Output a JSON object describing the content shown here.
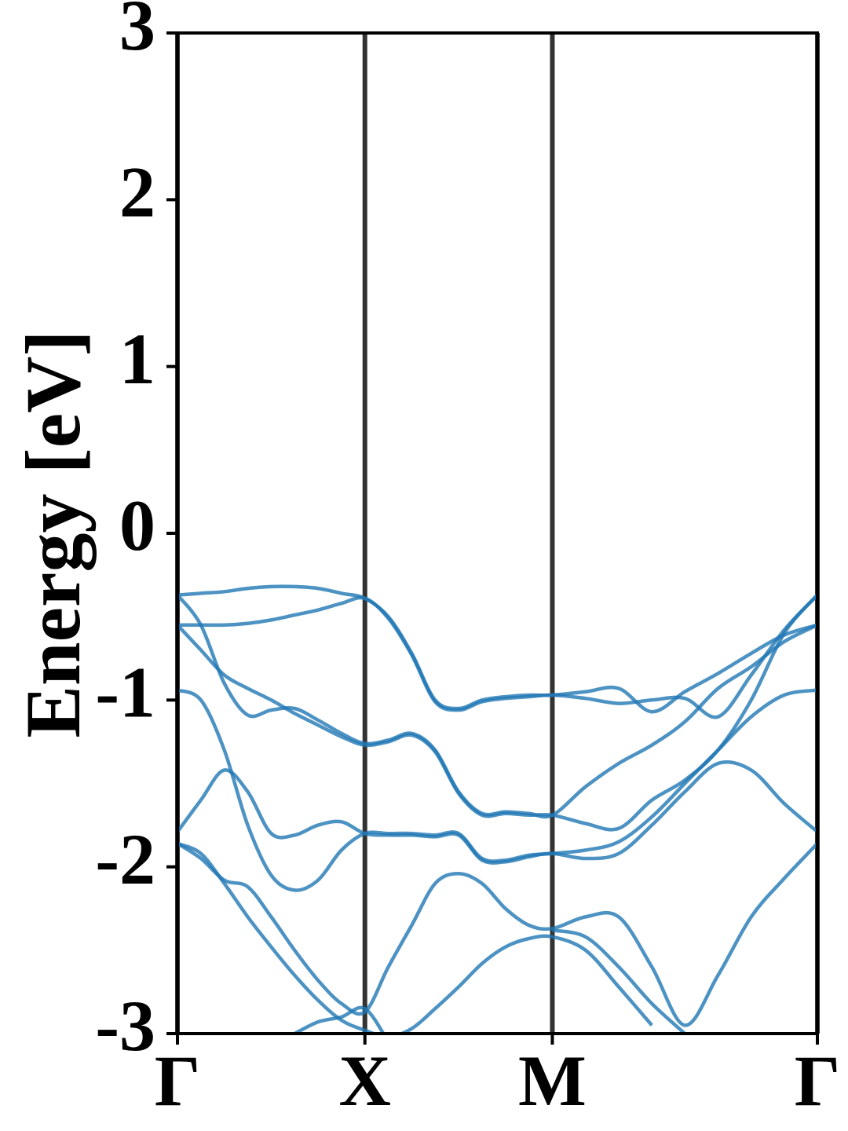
{
  "chart_data": {
    "type": "line",
    "ylabel": "Energy [eV]",
    "x": [
      0,
      0.125,
      0.25,
      0.375,
      0.5,
      0.625,
      0.75,
      0.875,
      1,
      1.125,
      1.25,
      1.375,
      1.5,
      1.625,
      1.75,
      1.875,
      2,
      2.177,
      2.354,
      2.531,
      2.707,
      2.884,
      3.061,
      3.237,
      3.414
    ],
    "xlim": [
      0,
      3.414
    ],
    "xticks": [
      {
        "value": 0,
        "label": "Γ"
      },
      {
        "value": 1,
        "label": "X"
      },
      {
        "value": 2,
        "label": "M"
      },
      {
        "value": 3.414,
        "label": "Γ"
      }
    ],
    "ylim": [
      -3,
      3
    ],
    "yticks": [
      -3,
      -2,
      -1,
      0,
      1,
      2,
      3
    ],
    "xgrid": true,
    "color": "#1f77b4",
    "series": [
      {
        "values": [
          -0.37,
          -0.36,
          -0.35,
          -0.33,
          -0.32,
          -0.32,
          -0.33,
          -0.36,
          -0.39,
          -0.5,
          -0.72,
          -1.0,
          -1.05,
          -1.0,
          -0.98,
          -0.97,
          -0.97,
          -0.95,
          -0.93,
          -1.07,
          -0.95,
          -0.84,
          -0.72,
          -0.61,
          -0.55
        ]
      },
      {
        "values": [
          -0.55,
          -0.55,
          -0.55,
          -0.54,
          -0.52,
          -0.49,
          -0.46,
          -0.42,
          -0.39,
          -0.51,
          -0.73,
          -1.01,
          -1.06,
          -1.01,
          -0.99,
          -0.98,
          -0.97,
          -0.99,
          -1.02,
          -1.0,
          -0.99,
          -1.1,
          -0.85,
          -0.58,
          -0.37
        ]
      },
      {
        "values": [
          -0.37,
          -0.55,
          -0.9,
          -1.09,
          -1.06,
          -1.05,
          -1.12,
          -1.2,
          -1.26,
          -1.24,
          -1.2,
          -1.3,
          -1.55,
          -1.68,
          -1.67,
          -1.68,
          -1.69,
          -1.52,
          -1.38,
          -1.27,
          -1.13,
          -0.93,
          -0.8,
          -0.65,
          -0.55
        ]
      },
      {
        "values": [
          -0.55,
          -0.7,
          -0.85,
          -0.93,
          -1.0,
          -1.08,
          -1.15,
          -1.22,
          -1.27,
          -1.25,
          -1.21,
          -1.31,
          -1.56,
          -1.69,
          -1.68,
          -1.69,
          -1.69,
          -1.74,
          -1.77,
          -1.6,
          -1.48,
          -1.3,
          -1.0,
          -0.6,
          -0.37
        ]
      },
      {
        "values": [
          -0.94,
          -1.0,
          -1.3,
          -1.75,
          -2.05,
          -2.14,
          -2.08,
          -1.9,
          -1.8,
          -1.8,
          -1.8,
          -1.81,
          -1.8,
          -1.95,
          -1.96,
          -1.93,
          -1.92,
          -1.9,
          -1.85,
          -1.7,
          -1.5,
          -1.3,
          -1.1,
          -0.97,
          -0.94
        ]
      },
      {
        "values": [
          -1.79,
          -1.6,
          -1.42,
          -1.55,
          -1.8,
          -1.81,
          -1.75,
          -1.73,
          -1.8,
          -1.81,
          -1.81,
          -1.82,
          -1.81,
          -1.96,
          -1.97,
          -1.94,
          -1.92,
          -1.95,
          -1.92,
          -1.75,
          -1.55,
          -1.38,
          -1.42,
          -1.62,
          -1.79
        ]
      },
      {
        "values": [
          -1.86,
          -1.95,
          -2.08,
          -2.12,
          -2.3,
          -2.5,
          -2.68,
          -2.82,
          -2.87,
          -2.6,
          -2.35,
          -2.1,
          -2.04,
          -2.1,
          -2.25,
          -2.35,
          -2.37,
          -2.3,
          -2.3,
          -2.6,
          -2.95,
          -2.65,
          -2.3,
          -2.07,
          -1.86
        ]
      },
      {
        "values": [
          -1.86,
          -1.92,
          -2.1,
          -2.3,
          -2.48,
          -2.65,
          -2.8,
          -2.92,
          -2.98,
          -3.02,
          -2.97,
          -2.85,
          -2.72,
          -2.58,
          -2.48,
          -2.43,
          -2.42,
          -2.5,
          -2.72,
          -2.95,
          null,
          null,
          null,
          null,
          null
        ]
      },
      {
        "values": [
          null,
          null,
          null,
          null,
          null,
          -3.0,
          -2.93,
          -2.9,
          -2.85,
          -3.05,
          null,
          null,
          null,
          null,
          null,
          null,
          -2.38,
          -2.42,
          -2.6,
          -2.82,
          -3.0,
          null,
          null,
          null,
          null
        ]
      }
    ]
  }
}
